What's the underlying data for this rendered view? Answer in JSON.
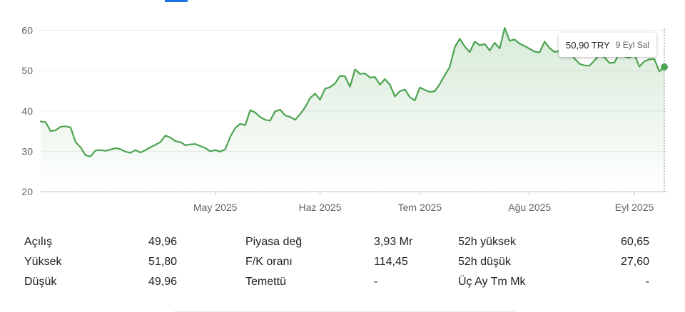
{
  "chart_data": {
    "type": "area",
    "y_ticks": [
      "60",
      "50",
      "40",
      "30",
      "20"
    ],
    "ylim": [
      20,
      62
    ],
    "x_ticks": [
      {
        "label": "May 2025",
        "value": 35
      },
      {
        "label": "Haz 2025",
        "value": 56
      },
      {
        "label": "Tem 2025",
        "value": 76
      },
      {
        "label": "Ağu 2025",
        "value": 98
      },
      {
        "label": "Eyl 2025",
        "value": 119
      }
    ],
    "x_range": [
      0,
      125
    ],
    "line_color": "#4ca351",
    "values": [
      37.4,
      37.2,
      35.0,
      35.2,
      36.1,
      36.2,
      35.9,
      32.3,
      31.0,
      29.0,
      28.7,
      30.2,
      30.3,
      30.1,
      30.4,
      30.8,
      30.5,
      29.9,
      29.6,
      30.3,
      29.7,
      30.3,
      31.0,
      31.6,
      32.3,
      33.9,
      33.4,
      32.5,
      32.3,
      31.5,
      31.7,
      31.8,
      31.3,
      30.8,
      30.0,
      30.3,
      29.9,
      30.5,
      33.6,
      35.8,
      36.8,
      36.5,
      40.2,
      39.6,
      38.5,
      37.8,
      37.6,
      39.9,
      40.3,
      38.9,
      38.5,
      37.8,
      39.2,
      40.9,
      43.2,
      44.3,
      42.8,
      45.5,
      45.9,
      46.8,
      48.7,
      48.6,
      46.0,
      50.3,
      49.2,
      49.3,
      48.3,
      48.4,
      46.5,
      47.9,
      46.5,
      43.6,
      44.9,
      45.3,
      43.4,
      42.6,
      45.8,
      45.2,
      44.7,
      44.9,
      46.7,
      48.9,
      50.9,
      55.8,
      57.9,
      56.0,
      54.6,
      57.2,
      56.3,
      56.6,
      55.0,
      56.9,
      55.5,
      60.6,
      57.4,
      57.7,
      56.7,
      56.1,
      55.4,
      54.7,
      54.5,
      57.2,
      55.6,
      54.6,
      54.9,
      54.4,
      54.9,
      53.0,
      51.7,
      51.3,
      51.2,
      52.5,
      54.0,
      53.3,
      51.9,
      52.0,
      54.3,
      53.5,
      53.2,
      54.0,
      51.0,
      52.3,
      52.8,
      52.9,
      49.8,
      50.9
    ],
    "current": {
      "price": "50,90 TRY",
      "date": "9 Eyl Sal"
    }
  },
  "stats": [
    [
      {
        "label": "Açılış",
        "value": "49,96"
      },
      {
        "label": "Piyasa değ",
        "value": "3,93 Mr"
      },
      {
        "label": "52h yüksek",
        "value": "60,65"
      }
    ],
    [
      {
        "label": "Yüksek",
        "value": "51,80"
      },
      {
        "label": "F/K oranı",
        "value": "114,45"
      },
      {
        "label": "52h düşük",
        "value": "27,60"
      }
    ],
    [
      {
        "label": "Düşük",
        "value": "49,96"
      },
      {
        "label": "Temettü",
        "value": "-"
      },
      {
        "label": "Üç Ay Tm Mk",
        "value": "-"
      }
    ]
  ]
}
